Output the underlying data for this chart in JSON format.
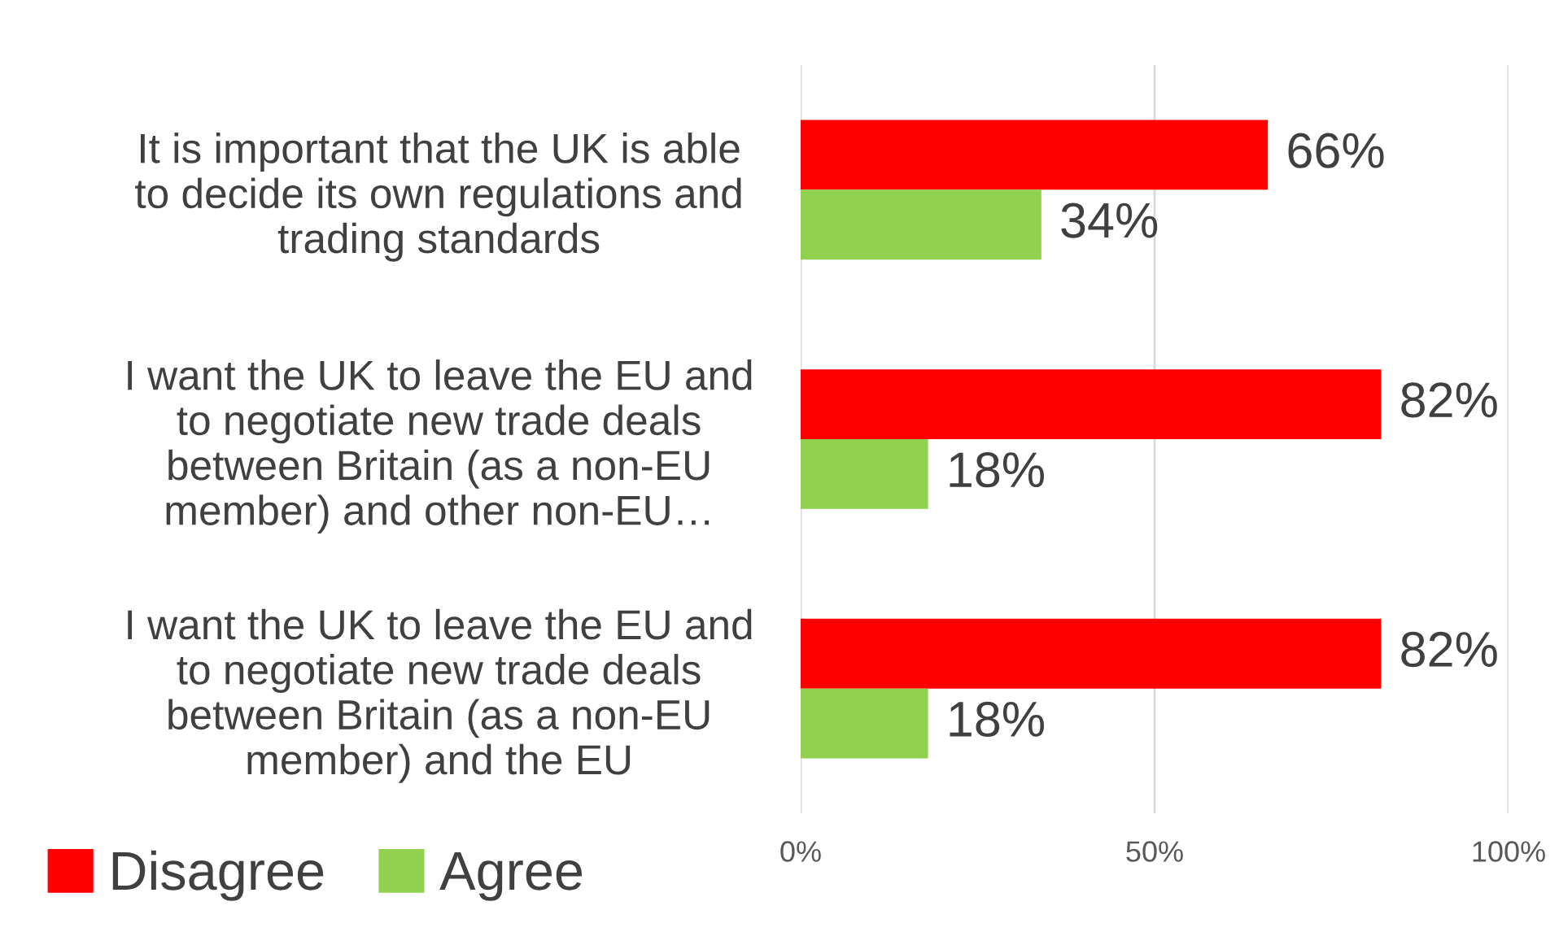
{
  "chart_data": {
    "type": "bar",
    "orientation": "horizontal",
    "categories": [
      "It is important that the UK is able\nto decide its own regulations and\ntrading standards",
      "I want the UK to leave the EU and\nto negotiate new trade deals\nbetween Britain (as a non-EU\nmember) and other non-EU…",
      "I want the UK to leave the EU and\nto negotiate new trade deals\nbetween Britain (as a non-EU\nmember) and the EU"
    ],
    "series": [
      {
        "name": "Disagree",
        "color": "#ff0000",
        "values": [
          66,
          82,
          82
        ],
        "value_labels": [
          "66%",
          "82%",
          "82%"
        ]
      },
      {
        "name": "Agree",
        "color": "#92d050",
        "values": [
          34,
          18,
          18
        ],
        "value_labels": [
          "34%",
          "18%",
          "18%"
        ]
      }
    ],
    "xlim": [
      0,
      100
    ],
    "xticks": [
      {
        "value": 0,
        "label": "0%"
      },
      {
        "value": 50,
        "label": "50%"
      },
      {
        "value": 100,
        "label": "100%"
      }
    ],
    "grid": "x",
    "legend": "bottom left"
  }
}
